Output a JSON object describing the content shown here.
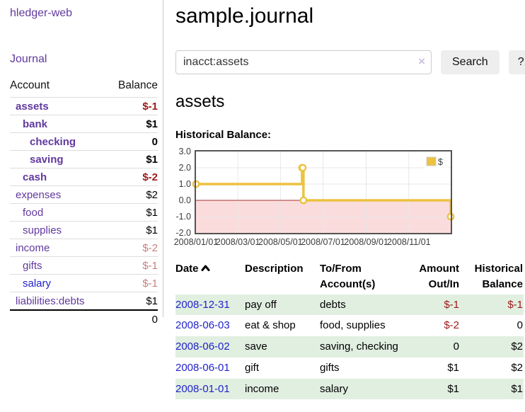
{
  "app_title": "hledger-web",
  "sidebar": {
    "journal_link": "Journal",
    "accounts": {
      "headers": {
        "account": "Account",
        "balance": "Balance"
      },
      "rows": [
        {
          "account": "assets",
          "balance": "$-1",
          "indent": 0,
          "bold": true,
          "account_color": "purple",
          "balance_color": "negative-strong"
        },
        {
          "account": "bank",
          "balance": "$1",
          "indent": 1,
          "bold": true,
          "account_color": "purple",
          "balance_color": "normal"
        },
        {
          "account": "checking",
          "balance": "0",
          "indent": 2,
          "bold": true,
          "account_color": "purple",
          "balance_color": "normal"
        },
        {
          "account": "saving",
          "balance": "$1",
          "indent": 2,
          "bold": true,
          "account_color": "purple",
          "balance_color": "normal"
        },
        {
          "account": "cash",
          "balance": "$-2",
          "indent": 1,
          "bold": true,
          "account_color": "purple",
          "balance_color": "negative-strong"
        },
        {
          "account": "expenses",
          "balance": "$2",
          "indent": 0,
          "bold": false,
          "account_color": "purple",
          "balance_color": "normal"
        },
        {
          "account": "food",
          "balance": "$1",
          "indent": 1,
          "bold": false,
          "account_color": "purple",
          "balance_color": "normal"
        },
        {
          "account": "supplies",
          "balance": "$1",
          "indent": 1,
          "bold": false,
          "account_color": "purple",
          "balance_color": "normal"
        },
        {
          "account": "income",
          "balance": "$-2",
          "indent": 0,
          "bold": false,
          "account_color": "purple",
          "balance_color": "negative-dim"
        },
        {
          "account": "gifts",
          "balance": "$-1",
          "indent": 1,
          "bold": false,
          "account_color": "purple",
          "balance_color": "negative-dim"
        },
        {
          "account": "salary",
          "balance": "$-1",
          "indent": 1,
          "bold": false,
          "account_color": "blue",
          "balance_color": "negative-dim"
        },
        {
          "account": "liabilities:debts",
          "balance": "$1",
          "indent": 0,
          "bold": false,
          "account_color": "purple",
          "balance_color": "normal"
        }
      ],
      "total": "0"
    }
  },
  "main": {
    "page_title": "sample.journal",
    "search": {
      "value": "inacct:assets",
      "clear_icon": "×",
      "search_button": "Search",
      "help_button": "?"
    },
    "account_heading": "assets",
    "chart_label": "Historical Balance:"
  },
  "chart_data": {
    "type": "line",
    "title": "Historical Balance",
    "series": [
      {
        "name": "$",
        "color": "#edc240",
        "step": true,
        "points": [
          [
            "2008-01-01",
            1
          ],
          [
            "2008-06-01",
            2
          ],
          [
            "2008-06-02",
            2
          ],
          [
            "2008-06-03",
            0
          ],
          [
            "2008-12-31",
            -1
          ]
        ]
      }
    ],
    "xlim": [
      "2008-01-01",
      "2008-12-31"
    ],
    "ylim": [
      -2,
      3
    ],
    "yticks": [
      3.0,
      2.0,
      1.0,
      0.0,
      -1.0,
      -2.0
    ],
    "xticks": [
      "2008/01/01",
      "2008/03/01",
      "2008/05/01",
      "2008/07/01",
      "2008/09/01",
      "2008/11/01"
    ],
    "legend_position": "top-right",
    "grid": true,
    "negative_region_color": "#fbdcdc",
    "zero_line_color": "#a03030",
    "grid_color": "#e7e7e7",
    "border_color": "#545454"
  },
  "register": {
    "headers": {
      "date": "Date",
      "description": "Description",
      "accounts": "To/From Account(s)",
      "amount": "Amount Out/In",
      "balance": "Historical Balance"
    },
    "rows": [
      {
        "date": "2008-12-31",
        "description": "pay off",
        "accounts": "debts",
        "amount": "$-1",
        "amount_negative": true,
        "balance": "$-1",
        "balance_negative": true
      },
      {
        "date": "2008-06-03",
        "description": "eat & shop",
        "accounts": "food, supplies",
        "amount": "$-2",
        "amount_negative": true,
        "balance": "0",
        "balance_negative": false
      },
      {
        "date": "2008-06-02",
        "description": "save",
        "accounts": "saving, checking",
        "amount": "0",
        "amount_negative": false,
        "balance": "$2",
        "balance_negative": false
      },
      {
        "date": "2008-06-01",
        "description": "gift",
        "accounts": "gifts",
        "amount": "$1",
        "amount_negative": false,
        "balance": "$2",
        "balance_negative": false
      },
      {
        "date": "2008-01-01",
        "description": "income",
        "accounts": "salary",
        "amount": "$1",
        "amount_negative": false,
        "balance": "$1",
        "balance_negative": false
      }
    ]
  },
  "colors": {
    "link_purple": "#61399e",
    "link_blue": "#2222cc",
    "negative_strong": "#9c1a1a",
    "negative_dim": "#c98080",
    "row_green": "#e1efe1",
    "chart_line": "#edc240",
    "chart_negative_fill": "#fbdcdc",
    "chart_zero_line": "#a03030",
    "button_gray": "#eeeeee"
  }
}
